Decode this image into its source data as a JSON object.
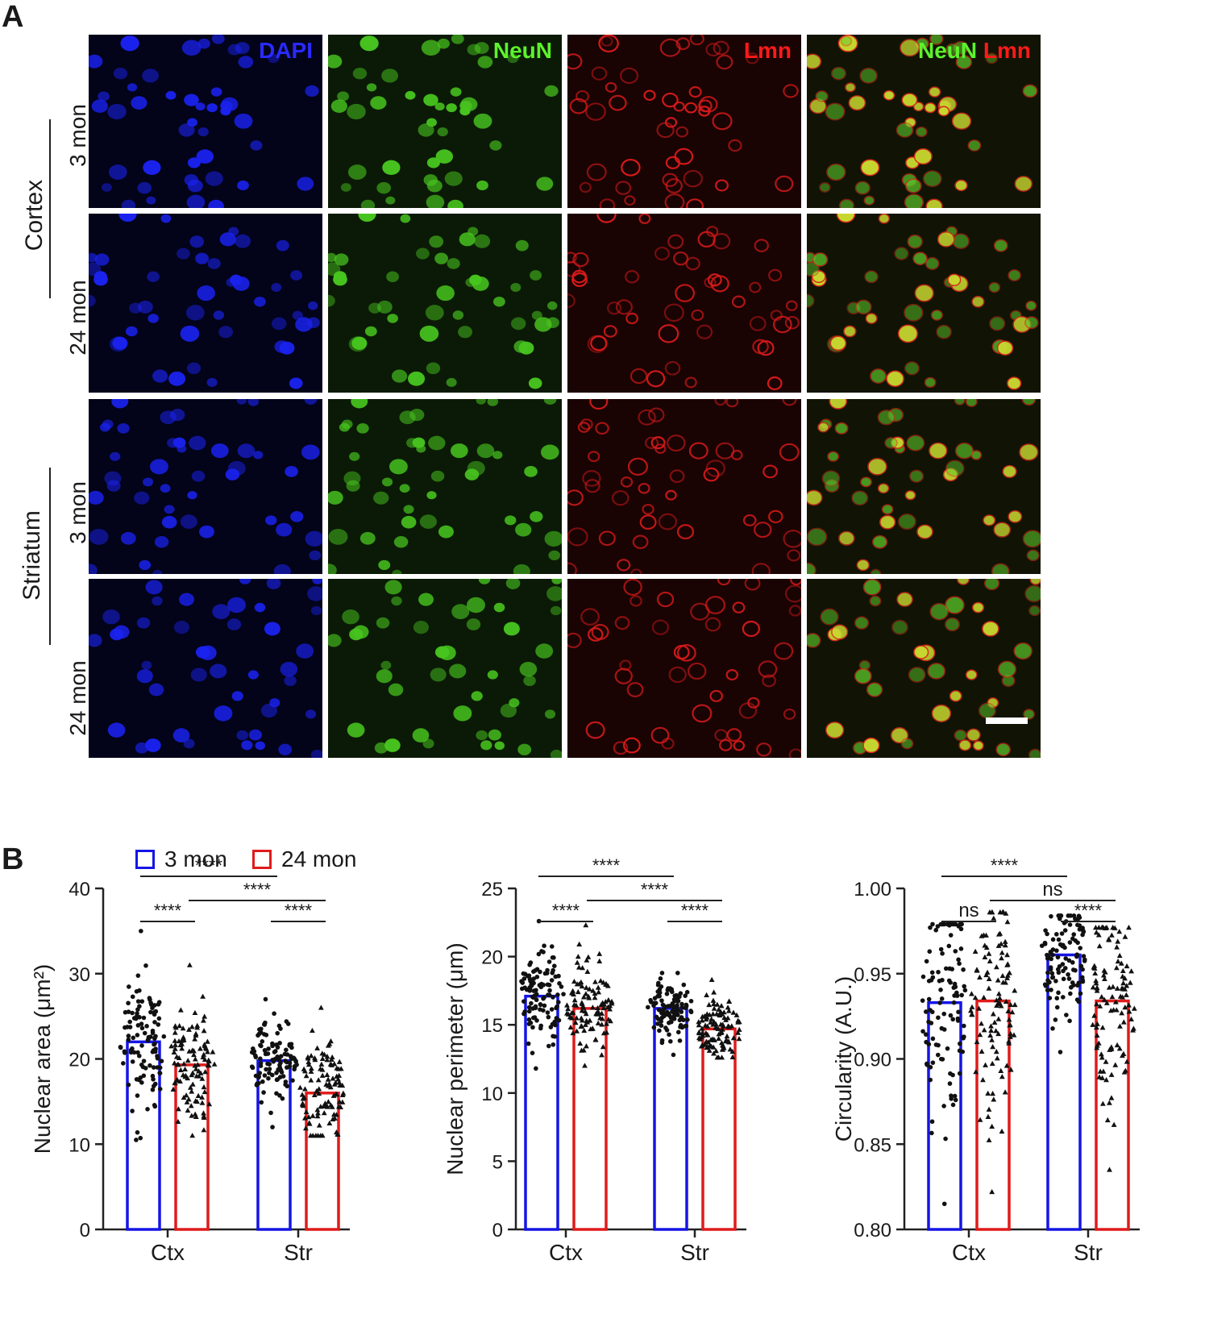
{
  "panel_a": {
    "letter": "A",
    "stains": [
      {
        "label": "DAPI",
        "color": "#2a2aff"
      },
      {
        "label": "NeuN",
        "color": "#5cf22c"
      },
      {
        "label": "Lmn",
        "color": "#ff1a1a"
      },
      {
        "label_parts": [
          {
            "text": "NeuN",
            "color": "#5cf22c"
          },
          {
            "text": " Lmn",
            "color": "#ff1a1a"
          }
        ]
      }
    ],
    "rows": [
      {
        "age": "3 mon"
      },
      {
        "age": "24 mon"
      },
      {
        "age": "3 mon"
      },
      {
        "age": "24 mon"
      }
    ],
    "regions": [
      {
        "label": "Cortex"
      },
      {
        "label": "Striatum"
      }
    ]
  },
  "panel_b": {
    "letter": "B",
    "legend": [
      {
        "label": "3 mon",
        "color": "#1515e6"
      },
      {
        "label": "24 mon",
        "color": "#e01b1b"
      }
    ]
  },
  "chart_data": [
    {
      "type": "bar",
      "categories": [
        "Ctx",
        "Str"
      ],
      "series": [
        {
          "name": "3 mon",
          "values": [
            22.0,
            19.8
          ]
        },
        {
          "name": "24 mon",
          "values": [
            19.3,
            16.0
          ]
        }
      ],
      "ylabel": "Nuclear area (μm²)",
      "ylim": [
        0,
        40
      ],
      "yticks": [
        "0",
        "10",
        "20",
        "30",
        "40"
      ],
      "point_ranges": [
        [
          10.5,
          35.0
        ],
        [
          11.0,
          31.0
        ],
        [
          12.0,
          27.0
        ],
        [
          11.0,
          26.0
        ]
      ],
      "significance": [
        {
          "label": "****",
          "from": "Ctx-3 mon",
          "to": "Ctx-24 mon"
        },
        {
          "label": "****",
          "from": "Str-3 mon",
          "to": "Str-24 mon"
        },
        {
          "label": "****",
          "from": "Ctx-24 mon",
          "to": "Str-24 mon"
        },
        {
          "label": "****",
          "from": "Ctx-3 mon",
          "to": "Str-3 mon"
        }
      ]
    },
    {
      "type": "bar",
      "categories": [
        "Ctx",
        "Str"
      ],
      "series": [
        {
          "name": "3 mon",
          "values": [
            17.1,
            16.2
          ]
        },
        {
          "name": "24 mon",
          "values": [
            16.2,
            14.7
          ]
        }
      ],
      "ylabel": "Nuclear perimeter (μm)",
      "ylim": [
        0,
        25
      ],
      "yticks": [
        "0",
        "5",
        "10",
        "15",
        "20",
        "25"
      ],
      "point_ranges": [
        [
          11.8,
          22.6
        ],
        [
          12.0,
          22.3
        ],
        [
          12.8,
          18.8
        ],
        [
          12.6,
          18.3
        ]
      ],
      "significance": [
        {
          "label": "****",
          "from": "Ctx-3 mon",
          "to": "Ctx-24 mon"
        },
        {
          "label": "****",
          "from": "Str-3 mon",
          "to": "Str-24 mon"
        },
        {
          "label": "****",
          "from": "Ctx-24 mon",
          "to": "Str-24 mon"
        },
        {
          "label": "****",
          "from": "Ctx-3 mon",
          "to": "Str-3 mon"
        }
      ]
    },
    {
      "type": "bar",
      "categories": [
        "Ctx",
        "Str"
      ],
      "series": [
        {
          "name": "3 mon",
          "values": [
            0.933,
            0.961
          ]
        },
        {
          "name": "24 mon",
          "values": [
            0.934,
            0.934
          ]
        }
      ],
      "ylabel": "Circularity (A.U.)",
      "ylim": [
        0.8,
        1.0
      ],
      "yticks": [
        "0.80",
        "0.85",
        "0.90",
        "0.95",
        "1.00"
      ],
      "point_ranges": [
        [
          0.815,
          0.979
        ],
        [
          0.822,
          0.986
        ],
        [
          0.904,
          0.984
        ],
        [
          0.835,
          0.977
        ]
      ],
      "significance": [
        {
          "label": "ns",
          "from": "Ctx-3 mon",
          "to": "Ctx-24 mon"
        },
        {
          "label": "****",
          "from": "Str-3 mon",
          "to": "Str-24 mon"
        },
        {
          "label": "ns",
          "from": "Ctx-24 mon",
          "to": "Str-24 mon"
        },
        {
          "label": "****",
          "from": "Ctx-3 mon",
          "to": "Str-3 mon"
        }
      ]
    }
  ]
}
